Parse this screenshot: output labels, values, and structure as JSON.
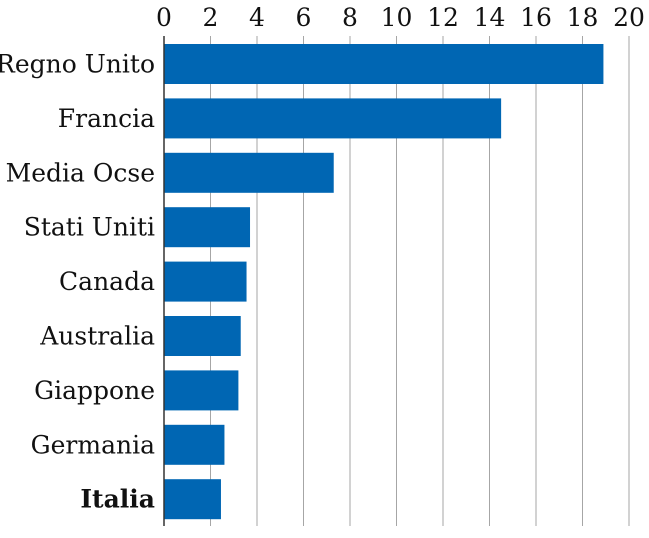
{
  "chart_data": {
    "type": "bar",
    "orientation": "horizontal",
    "categories": [
      "Regno Unito",
      "Francia",
      "Media Ocse",
      "Stati Uniti",
      "Canada",
      "Australia",
      "Giappone",
      "Germania",
      "Italia"
    ],
    "values": [
      18.9,
      14.5,
      7.3,
      3.7,
      3.55,
      3.3,
      3.2,
      2.6,
      2.45
    ],
    "highlight_category": "Italia",
    "title": "",
    "xlabel": "",
    "ylabel": "",
    "xlim": [
      0,
      20
    ],
    "xticks": [
      0,
      2,
      4,
      6,
      8,
      10,
      12,
      14,
      16,
      18,
      20
    ],
    "x_axis_position": "top",
    "grid": true,
    "legend": "none",
    "colors": {
      "bar": "#0066b3",
      "grid": "#a6a6a6",
      "axis": "#333333",
      "text": "#111111"
    }
  }
}
